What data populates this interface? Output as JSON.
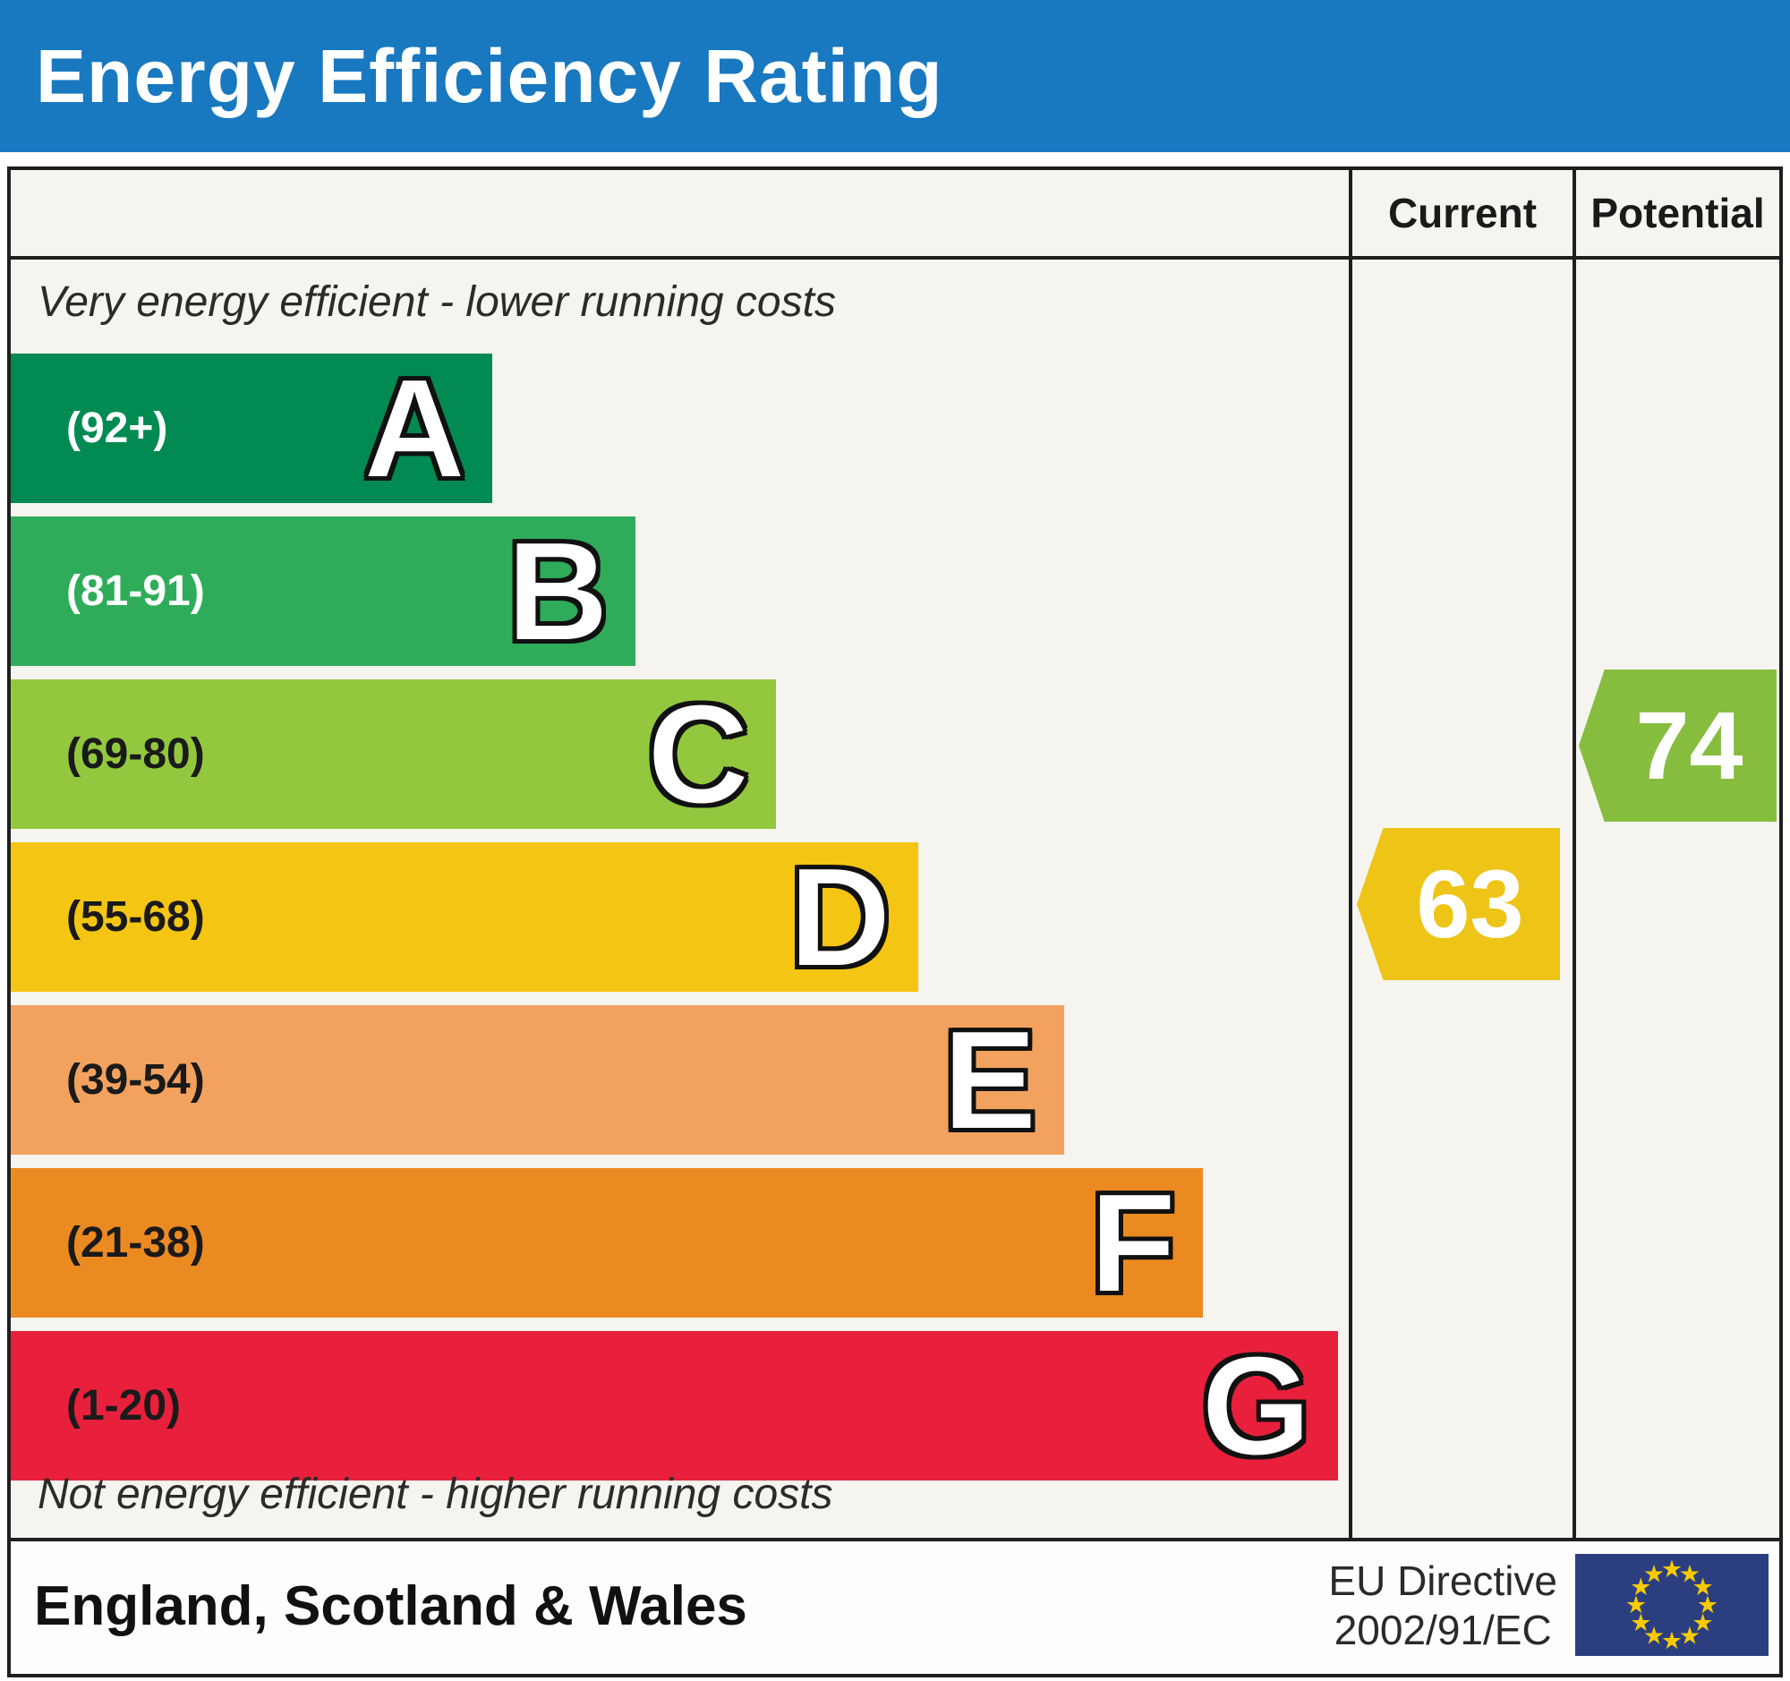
{
  "title": "Energy Efficiency Rating",
  "header": {
    "current_label": "Current",
    "potential_label": "Potential"
  },
  "notes": {
    "top": "Very energy efficient - lower running costs",
    "bottom": "Not energy efficient - higher running costs"
  },
  "bands": [
    {
      "letter": "A",
      "range": "(92+)",
      "color": "#018a52",
      "width_pct": 36.0,
      "label_color": "#ffffff"
    },
    {
      "letter": "B",
      "range": "(81-91)",
      "color": "#2fac5a",
      "width_pct": 46.7,
      "label_color": "#ffffff"
    },
    {
      "letter": "C",
      "range": "(69-80)",
      "color": "#93c83e",
      "width_pct": 57.2,
      "label_color": "#1a1a1a"
    },
    {
      "letter": "D",
      "range": "(55-68)",
      "color": "#f4c513",
      "width_pct": 67.8,
      "label_color": "#1a1a1a"
    },
    {
      "letter": "E",
      "range": "(39-54)",
      "color": "#f2a25e",
      "width_pct": 78.7,
      "label_color": "#1a1a1a"
    },
    {
      "letter": "F",
      "range": "(21-38)",
      "color": "#ec8a22",
      "width_pct": 89.1,
      "label_color": "#1a1a1a"
    },
    {
      "letter": "G",
      "range": "(1-20)",
      "color": "#e8203c",
      "width_pct": 99.2,
      "label_color": "#1a1a1a"
    }
  ],
  "markers": {
    "current": {
      "value": "63",
      "band": "D",
      "color": "#eec416",
      "text_color": "#ffffff"
    },
    "potential": {
      "value": "74",
      "band": "C",
      "color": "#86bd3f",
      "text_color": "#ffffff"
    }
  },
  "footer": {
    "region": "England, Scotland & Wales",
    "directive_line1": "EU Directive",
    "directive_line2": "2002/91/EC"
  },
  "eu_flag": {
    "name": "eu-flag",
    "background": "#2b3f80",
    "star_color": "#f8ca00",
    "star_count": 12,
    "star_glyph": "★"
  },
  "colors": {
    "title_bar": "#1878c0",
    "chart_background": "#f5f4ee",
    "border": "#1f1f1f"
  },
  "chart_data": {
    "type": "bar",
    "title": "Energy Efficiency Rating",
    "categories": [
      "A",
      "B",
      "C",
      "D",
      "E",
      "F",
      "G"
    ],
    "band_ranges": [
      "92+",
      "81-91",
      "69-80",
      "55-68",
      "39-54",
      "21-38",
      "1-20"
    ],
    "band_colors": [
      "#018a52",
      "#2fac5a",
      "#93c83e",
      "#f4c513",
      "#f2a25e",
      "#ec8a22",
      "#e8203c"
    ],
    "bar_lengths_pct_of_chart_width": [
      36,
      47,
      57,
      68,
      79,
      89,
      99
    ],
    "series": [
      {
        "name": "Current",
        "value": 63,
        "band": "D"
      },
      {
        "name": "Potential",
        "value": 74,
        "band": "C"
      }
    ],
    "annotations": [
      "Very energy efficient - lower running costs",
      "Not energy efficient - higher running costs"
    ],
    "region": "England, Scotland & Wales",
    "directive": "EU Directive 2002/91/EC",
    "legend_position": "none",
    "grid": false
  }
}
